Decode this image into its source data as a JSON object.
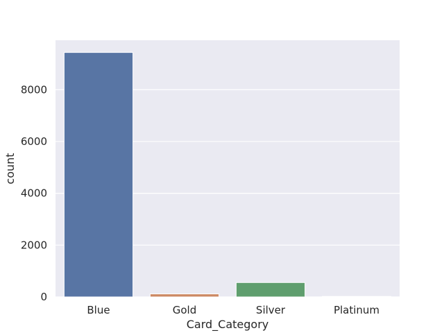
{
  "chart_data": {
    "type": "bar",
    "categories": [
      "Blue",
      "Gold",
      "Silver",
      "Platinum"
    ],
    "values": [
      9436,
      116,
      555,
      20
    ],
    "xlabel": "Card_Category",
    "ylabel": "count",
    "ylim": [
      0,
      9908
    ],
    "yticks": [
      0,
      2000,
      4000,
      6000,
      8000
    ],
    "ytick_labels": [
      "0",
      "2000",
      "4000",
      "6000",
      "8000"
    ],
    "grid": "horizontal",
    "colors": {
      "background": "#eaeaf2",
      "grid": "#ffffff",
      "bars": [
        "#5875a4",
        "#cc8963",
        "#5f9e6e",
        "#b55d60"
      ]
    }
  }
}
